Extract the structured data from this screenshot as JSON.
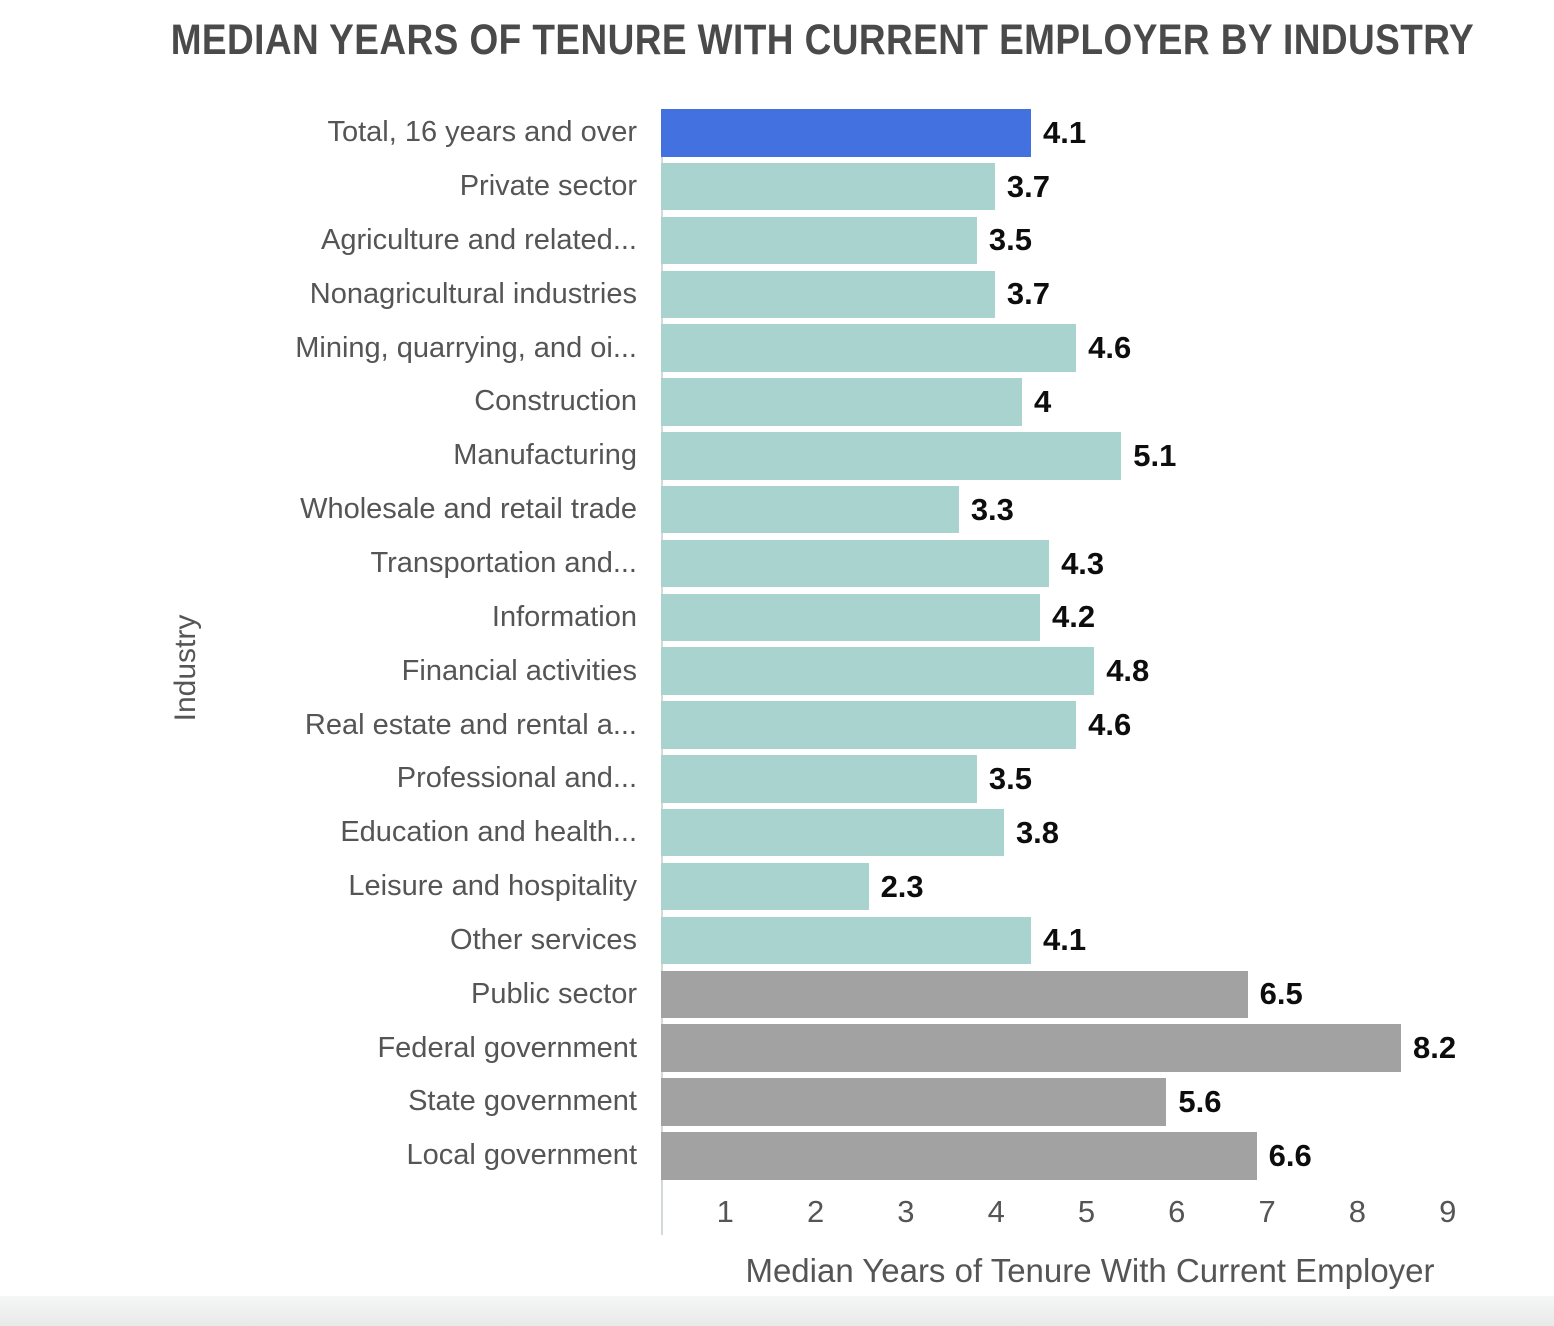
{
  "page": {
    "background": "#ffffff",
    "footer_strip_color": "#e9ebea"
  },
  "chart_data": {
    "type": "bar",
    "orientation": "horizontal",
    "title": "MEDIAN YEARS OF TENURE WITH CURRENT EMPLOYER BY INDUSTRY",
    "xlabel": "Median Years of Tenure With Current Employer",
    "ylabel": "Industry",
    "xlim": [
      0,
      9.9
    ],
    "grid": false,
    "legend": null,
    "xticks": [
      "1",
      "2",
      "3",
      "4",
      "5",
      "6",
      "7",
      "8",
      "9"
    ],
    "categories": [
      "Total, 16 years and over",
      "Private sector",
      "Agriculture and related...",
      "Nonagricultural industries",
      "Mining, quarrying, and oi...",
      "Construction",
      "Manufacturing",
      "Wholesale and retail trade",
      "Transportation and...",
      "Information",
      "Financial activities",
      "Real estate and rental a...",
      "Professional and...",
      "Education and health...",
      "Leisure and hospitality",
      "Other services",
      "Public sector",
      "Federal government",
      "State government",
      "Local government"
    ],
    "values": [
      4.1,
      3.7,
      3.5,
      3.7,
      4.6,
      4,
      5.1,
      3.3,
      4.3,
      4.2,
      4.8,
      4.6,
      3.5,
      3.8,
      2.3,
      4.1,
      6.5,
      8.2,
      5.6,
      6.6
    ],
    "value_labels": [
      "4.1",
      "3.7",
      "3.5",
      "3.7",
      "4.6",
      "4",
      "5.1",
      "3.3",
      "4.3",
      "4.2",
      "4.8",
      "4.6",
      "3.5",
      "3.8",
      "2.3",
      "4.1",
      "6.5",
      "8.2",
      "5.6",
      "6.6"
    ],
    "groups": [
      "total",
      "private",
      "private",
      "private",
      "private",
      "private",
      "private",
      "private",
      "private",
      "private",
      "private",
      "private",
      "private",
      "private",
      "private",
      "private",
      "public",
      "public",
      "public",
      "public"
    ],
    "colors": {
      "total": "#4372e0",
      "private": "#a9d3ce",
      "public": "#a2a2a2"
    },
    "text_colors": {
      "title": "#4a4a4a",
      "axis_labels": "#555555",
      "category_labels": "#555555",
      "value_labels": "#0d0d0d"
    }
  }
}
